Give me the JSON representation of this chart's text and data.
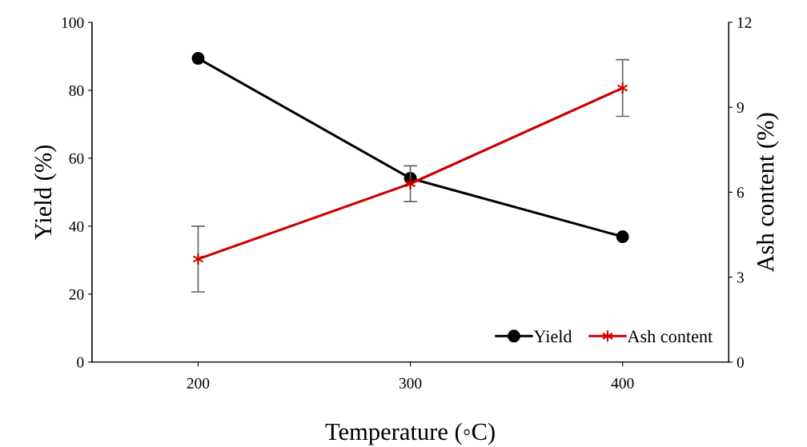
{
  "chart_data": {
    "type": "line",
    "xlabel": "Temperature (◦C)",
    "ylabel": "Yield (%)",
    "y2label": "Ash content (%)",
    "x": [
      200,
      300,
      400
    ],
    "xlim": [
      150,
      450
    ],
    "xticks": [
      200,
      300,
      400
    ],
    "ylim": [
      0,
      100
    ],
    "yticks": [
      0,
      20,
      40,
      60,
      80,
      100
    ],
    "y2lim": [
      0,
      12
    ],
    "y2ticks": [
      0,
      3,
      6,
      9,
      12
    ],
    "series": [
      {
        "name": "Yield",
        "color": "#000000",
        "marker": "circle",
        "values": [
          89.4,
          54.1,
          36.9
        ]
      },
      {
        "name": "Ash content",
        "color": "#cc0000",
        "marker": "cross",
        "axis": "y2",
        "values": [
          3.64,
          6.3,
          9.68
        ],
        "errors": [
          1.16,
          0.63,
          1.0
        ]
      }
    ],
    "grid": false,
    "legend": "bottom right",
    "line_style": "solid"
  }
}
